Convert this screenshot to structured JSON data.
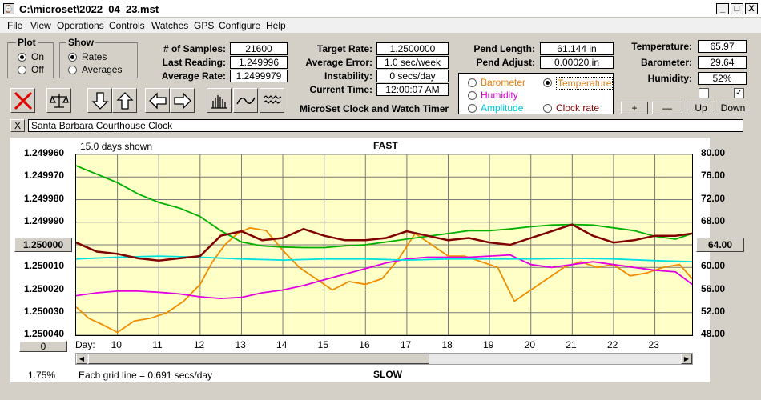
{
  "window": {
    "title": "C:\\microset\\2022_04_23.mst",
    "icon": "app-icon",
    "controls": [
      "_",
      "□",
      "X"
    ]
  },
  "menu": [
    "File",
    "View",
    "Operations",
    "Controls",
    "Watches",
    "GPS",
    "Configure",
    "Help"
  ],
  "plot_group": {
    "title": "Plot",
    "options": [
      {
        "label": "On",
        "selected": true
      },
      {
        "label": "Off",
        "selected": false
      }
    ]
  },
  "show_group": {
    "title": "Show",
    "options": [
      {
        "label": "Rates",
        "selected": true
      },
      {
        "label": "Averages",
        "selected": false
      }
    ]
  },
  "stats": {
    "samples_label": "# of Samples:",
    "samples": "21600",
    "last_label": "Last Reading:",
    "last": "1.249996",
    "avg_label": "Average Rate:",
    "avg": "1.2499979",
    "target_label": "Target Rate:",
    "target": "1.2500000",
    "err_label": "Average Error:",
    "err": "1.0 sec/week",
    "inst_label": "Instability:",
    "inst": "0 secs/day",
    "time_label": "Current Time:",
    "time": "12:00:07 AM",
    "pendlen_label": "Pend Length:",
    "pendlen": "61.144 in",
    "pendadj_label": "Pend Adjust:",
    "pendadj": "0.00020 in",
    "temp_label": "Temperature:",
    "temp": "65.97",
    "baro_label": "Barometer:",
    "baro": "29.64",
    "hum_label": "Humidity:",
    "hum": "52%"
  },
  "app_caption": "MicroSet Clock and Watch Timer",
  "sensor_options": [
    {
      "label": "Barometer",
      "color": "#e87d10",
      "selected": false
    },
    {
      "label": "Temperature",
      "color": "#e87d10",
      "selected": true
    },
    {
      "label": "Humidity",
      "color": "#d000d0",
      "selected": false
    },
    {
      "label": "Clock rate",
      "color": "#800000",
      "selected": false
    },
    {
      "label": "Amplitude",
      "color": "#00c8e0",
      "selected": false
    }
  ],
  "adjust_buttons": [
    "+",
    "—",
    "Up",
    "Down"
  ],
  "checks": [
    false,
    true
  ],
  "toolbar": [
    "close-red-x-icon",
    "balance-scale-icon",
    "arrow-down-icon",
    "arrow-up-icon",
    "arrow-left-icon",
    "arrow-right-icon",
    "histogram-icon",
    "wave-icon",
    "noise-icon"
  ],
  "clock_name": "Santa Barbara Courthouse Clock",
  "close_x": "X",
  "chart": {
    "days_shown": "15.0 days shown",
    "top_label": "FAST",
    "bottom_label": "SLOW",
    "grid_note": "Each grid line = 0.691 secs/day",
    "percent": "1.75%",
    "left_box": "1.250000",
    "right_box": "64.00",
    "scroll_box": "0",
    "day_prefix": "Day:"
  },
  "chart_data": {
    "type": "line",
    "x_label": "Day:",
    "xticks": [
      10,
      11,
      12,
      13,
      14,
      15,
      16,
      17,
      18,
      19,
      20,
      21,
      22,
      23
    ],
    "x_range": [
      9.0,
      23.9
    ],
    "yleft_ticks": [
      "1.249960",
      "1.249970",
      "1.249980",
      "1.249990",
      "1.250000",
      "1.250010",
      "1.250020",
      "1.250030",
      "1.250040"
    ],
    "yleft_range": [
      1.24996,
      1.25004
    ],
    "yright_ticks": [
      "80.00",
      "76.00",
      "72.00",
      "68.00",
      "64.00",
      "60.00",
      "56.00",
      "52.00",
      "48.00"
    ],
    "yright_range": [
      48,
      80
    ],
    "inverted_left_axis": true,
    "grid": true,
    "series": [
      {
        "name": "Clock rate",
        "color": "#800000",
        "axis": "left",
        "x": [
          9.0,
          9.5,
          10.0,
          10.5,
          11.0,
          11.5,
          12.0,
          12.5,
          13.0,
          13.5,
          14.0,
          14.5,
          15.0,
          15.5,
          16.0,
          16.5,
          17.0,
          17.5,
          18.0,
          18.5,
          19.0,
          19.5,
          20.0,
          20.5,
          21.0,
          21.5,
          22.0,
          22.5,
          23.0,
          23.5,
          23.9
        ],
        "y": [
          1.249999,
          1.250003,
          1.250004,
          1.250006,
          1.250007,
          1.250006,
          1.250005,
          1.249996,
          1.249994,
          1.249998,
          1.249997,
          1.249993,
          1.249996,
          1.249998,
          1.249998,
          1.249997,
          1.249994,
          1.249996,
          1.249998,
          1.249997,
          1.249999,
          1.25,
          1.249997,
          1.249994,
          1.249991,
          1.249996,
          1.249999,
          1.249998,
          1.249996,
          1.249996,
          1.249995
        ]
      },
      {
        "name": "Temperature",
        "color": "#00b000",
        "axis": "right",
        "x": [
          9.0,
          9.5,
          10.0,
          10.5,
          11.0,
          11.5,
          12.0,
          12.5,
          13.0,
          13.5,
          14.0,
          14.5,
          15.0,
          15.5,
          16.0,
          16.5,
          17.0,
          17.5,
          18.0,
          18.5,
          19.0,
          19.5,
          20.0,
          20.5,
          21.0,
          21.5,
          22.0,
          22.5,
          23.0,
          23.5,
          23.9
        ],
        "y": [
          78,
          76.5,
          75,
          73,
          71.5,
          70.5,
          69,
          66.5,
          64.5,
          63.8,
          63.6,
          63.5,
          63.5,
          63.8,
          64,
          64.5,
          65,
          65.5,
          66,
          66.5,
          66.5,
          66.8,
          67.2,
          67.5,
          67.6,
          67.5,
          67,
          66.5,
          65.5,
          65,
          66
        ]
      },
      {
        "name": "Humidity",
        "color": "#e000e0",
        "axis": "right",
        "x": [
          9.0,
          9.5,
          10.0,
          10.5,
          11.0,
          11.5,
          12.0,
          12.5,
          13.0,
          13.5,
          14.0,
          14.5,
          15.0,
          15.5,
          16.0,
          16.5,
          17.0,
          17.5,
          18.0,
          18.5,
          19.0,
          19.5,
          20.0,
          20.5,
          21.0,
          21.5,
          22.0,
          22.5,
          23.0,
          23.5,
          23.9
        ],
        "y": [
          55,
          55.5,
          55.8,
          55.8,
          55.6,
          55.3,
          54.8,
          54.5,
          54.7,
          55.5,
          56,
          56.8,
          57.8,
          58.8,
          59.8,
          60.8,
          61.5,
          61.8,
          61.8,
          61.8,
          62,
          62.2,
          60.5,
          60,
          60.5,
          61,
          60.5,
          60,
          59.5,
          59.2,
          57
        ]
      },
      {
        "name": "Amplitude",
        "color": "#00e0e0",
        "axis": "right",
        "x": [
          9.0,
          10.0,
          11.0,
          12.0,
          13.0,
          14.0,
          15.0,
          16.0,
          17.0,
          18.0,
          19.0,
          20.0,
          21.0,
          22.0,
          23.0,
          23.9
        ],
        "y": [
          61.5,
          61.8,
          62,
          61.8,
          61.5,
          61.3,
          61.5,
          61.5,
          61.3,
          61.5,
          61.5,
          61.5,
          61.6,
          61.5,
          61.2,
          61
        ]
      },
      {
        "name": "Barometer",
        "color": "#f08c00",
        "axis": "right",
        "x": [
          9.0,
          9.3,
          9.6,
          10.0,
          10.4,
          10.8,
          11.2,
          11.6,
          12.0,
          12.3,
          12.6,
          12.9,
          13.2,
          13.6,
          14.0,
          14.4,
          14.8,
          15.2,
          15.6,
          16.0,
          16.4,
          16.8,
          17.2,
          17.6,
          18.0,
          18.4,
          18.8,
          19.2,
          19.6,
          20.0,
          20.4,
          20.8,
          21.2,
          21.6,
          22.0,
          22.4,
          22.8,
          23.2,
          23.6,
          23.9
        ],
        "y": [
          53,
          51,
          50,
          48.5,
          50.5,
          51,
          52,
          54,
          57,
          61,
          64,
          66,
          67,
          66.5,
          63,
          60,
          58,
          56,
          57.5,
          57,
          58,
          61.5,
          66,
          64,
          62,
          62,
          61,
          60,
          54,
          56,
          58,
          60,
          61,
          60,
          60.5,
          58.5,
          59,
          60,
          60.5,
          58
        ]
      }
    ]
  }
}
